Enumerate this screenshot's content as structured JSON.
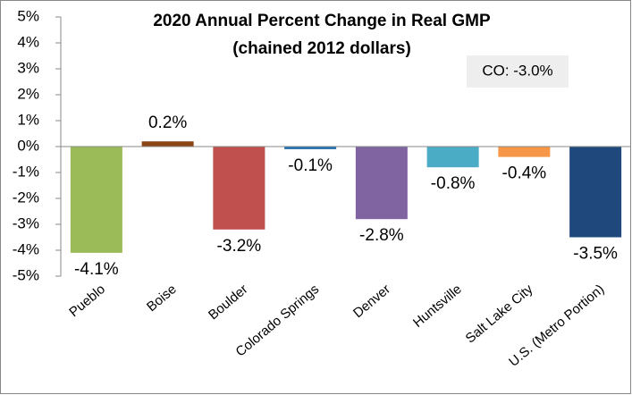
{
  "chart_data": {
    "type": "bar",
    "title": "2020 Annual Percent Change in Real GMP",
    "subtitle": "(chained 2012 dollars)",
    "annotation": "CO: -3.0%",
    "categories": [
      "Pueblo",
      "Boise",
      "Boulder",
      "Colorado Springs",
      "Denver",
      "Huntsville",
      "Salt Lake City",
      "U.S. (Metro Portion)"
    ],
    "values": [
      -4.1,
      0.2,
      -3.2,
      -0.1,
      -2.8,
      -0.8,
      -0.4,
      -3.5
    ],
    "value_labels": [
      "-4.1%",
      "0.2%",
      "-3.2%",
      "-0.1%",
      "-2.8%",
      "-0.8%",
      "-0.4%",
      "-3.5%"
    ],
    "colors": [
      "#9bbb59",
      "#8b4513",
      "#c0504d",
      "#1f6fb4",
      "#8064a2",
      "#4bacc6",
      "#f79646",
      "#1f497d"
    ],
    "ylim": [
      -5,
      5
    ],
    "yticks": [
      {
        "value": -5,
        "label": "-5%"
      },
      {
        "value": -4,
        "label": "-4%"
      },
      {
        "value": -3,
        "label": "-3%"
      },
      {
        "value": -2,
        "label": "-2%"
      },
      {
        "value": -1,
        "label": "-1%"
      },
      {
        "value": 0,
        "label": "0%"
      },
      {
        "value": 1,
        "label": "1%"
      },
      {
        "value": 2,
        "label": "2%"
      },
      {
        "value": 3,
        "label": "3%"
      },
      {
        "value": 4,
        "label": "4%"
      },
      {
        "value": 5,
        "label": "5%"
      }
    ],
    "grid": false
  }
}
